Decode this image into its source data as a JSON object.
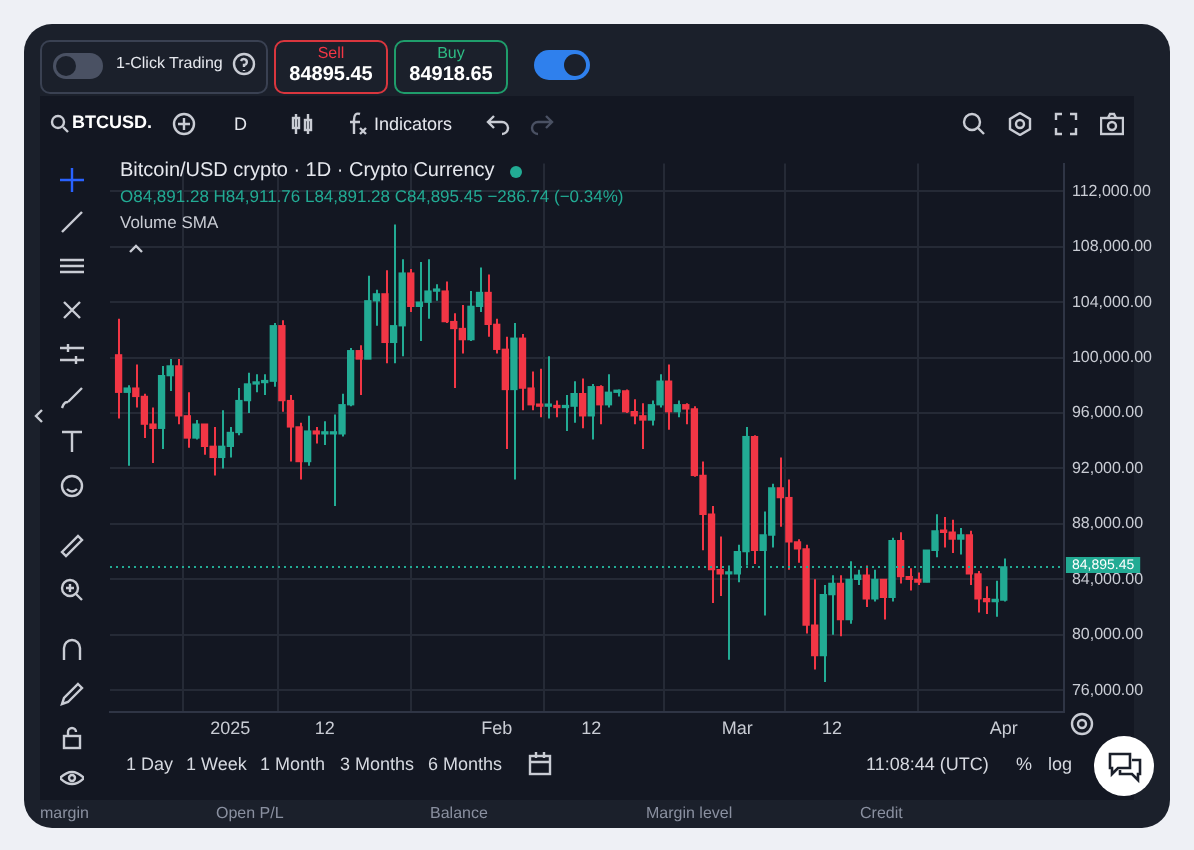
{
  "chart_data": {
    "type": "candlestick",
    "title": "Bitcoin/USD crypto · 1D · Crypto Currency",
    "annotations": [
      "1-Click Trading",
      "Sell",
      "84895.45",
      "Buy",
      "84918.65",
      "BTCUSD.",
      "D",
      "Indicators",
      "O84,891.28 H84,911.76 L84,891.28 C84,895.45 −286.74 (−0.34%)",
      "Volume SMA",
      "1 Day",
      "1 Week",
      "1 Month",
      "3 Months",
      "6 Months",
      "11:08:44 (UTC)",
      "%",
      "log",
      "margin",
      "Open P/L",
      "Balance",
      "Margin level",
      "Credit"
    ],
    "x": [
      "2024-12-19",
      "2024-12-20",
      "2024-12-21",
      "2024-12-22",
      "2024-12-23",
      "2024-12-24",
      "2024-12-25",
      "2024-12-26",
      "2024-12-27",
      "2024-12-28",
      "2024-12-29",
      "2024-12-30",
      "2024-12-31",
      "2025-01-01",
      "2025-01-02",
      "2025-01-03",
      "2025-01-04",
      "2025-01-05",
      "2025-01-06",
      "2025-01-07",
      "2025-01-08",
      "2025-01-09",
      "2025-01-10",
      "2025-01-11",
      "2025-01-12",
      "2025-01-13",
      "2025-01-14",
      "2025-01-15",
      "2025-01-16",
      "2025-01-17",
      "2025-01-18",
      "2025-01-19",
      "2025-01-20",
      "2025-01-21",
      "2025-01-22",
      "2025-01-23",
      "2025-01-24",
      "2025-01-25",
      "2025-01-26",
      "2025-01-27",
      "2025-01-28",
      "2025-01-29",
      "2025-01-30",
      "2025-01-31",
      "2025-02-01",
      "2025-02-02",
      "2025-02-03",
      "2025-02-04",
      "2025-02-05",
      "2025-02-06",
      "2025-02-07",
      "2025-02-08",
      "2025-02-09",
      "2025-02-10",
      "2025-02-11",
      "2025-02-12",
      "2025-02-13",
      "2025-02-14",
      "2025-02-15",
      "2025-02-16",
      "2025-02-17",
      "2025-02-18",
      "2025-02-19",
      "2025-02-20",
      "2025-02-21",
      "2025-02-22",
      "2025-02-23",
      "2025-02-24",
      "2025-02-25",
      "2025-02-26",
      "2025-02-27",
      "2025-02-28",
      "2025-03-01",
      "2025-03-02",
      "2025-03-03",
      "2025-03-04",
      "2025-03-05",
      "2025-03-06",
      "2025-03-07",
      "2025-03-08",
      "2025-03-09",
      "2025-03-10",
      "2025-03-11",
      "2025-03-12",
      "2025-03-13",
      "2025-03-14",
      "2025-03-15",
      "2025-03-16",
      "2025-03-17",
      "2025-03-18",
      "2025-03-19",
      "2025-03-20",
      "2025-03-21",
      "2025-03-22",
      "2025-03-23",
      "2025-03-24",
      "2025-03-25",
      "2025-03-26",
      "2025-03-27",
      "2025-03-28",
      "2025-03-29",
      "2025-03-30",
      "2025-03-31",
      "2025-04-01"
    ],
    "ohlc": [
      [
        100200,
        102800,
        95600,
        97500
      ],
      [
        97500,
        98000,
        92200,
        97800
      ],
      [
        97800,
        99500,
        96400,
        97200
      ],
      [
        97200,
        97400,
        94200,
        95200
      ],
      [
        95200,
        96400,
        92400,
        94900
      ],
      [
        94900,
        99400,
        93400,
        98700
      ],
      [
        98700,
        99900,
        97600,
        99400
      ],
      [
        99400,
        99900,
        95200,
        95800
      ],
      [
        95800,
        97500,
        93500,
        94200
      ],
      [
        94200,
        95500,
        94100,
        95200
      ],
      [
        95200,
        95200,
        93000,
        93600
      ],
      [
        93600,
        95000,
        91500,
        92800
      ],
      [
        92800,
        96200,
        92000,
        93600
      ],
      [
        93600,
        95000,
        92800,
        94600
      ],
      [
        94600,
        97800,
        94400,
        96900
      ],
      [
        96900,
        98900,
        96000,
        98100
      ],
      [
        98100,
        98800,
        97500,
        98200
      ],
      [
        98200,
        98800,
        97300,
        98300
      ],
      [
        98300,
        102500,
        97900,
        102300
      ],
      [
        102300,
        102700,
        96100,
        96900
      ],
      [
        96900,
        97300,
        92500,
        95000
      ],
      [
        95000,
        95300,
        91200,
        92500
      ],
      [
        92500,
        95800,
        92200,
        94700
      ],
      [
        94700,
        95000,
        93800,
        94500
      ],
      [
        94500,
        95400,
        93700,
        94500
      ],
      [
        94500,
        95900,
        89300,
        94500
      ],
      [
        94500,
        97400,
        94300,
        96600
      ],
      [
        96600,
        100700,
        96500,
        100500
      ],
      [
        100500,
        100900,
        97300,
        99900
      ],
      [
        99900,
        105900,
        99900,
        104100
      ],
      [
        104100,
        104900,
        102300,
        104600
      ],
      [
        104600,
        106300,
        99600,
        101100
      ],
      [
        101100,
        109600,
        99600,
        102300
      ],
      [
        102300,
        107100,
        100100,
        106100
      ],
      [
        106100,
        106400,
        103300,
        103700
      ],
      [
        103700,
        106900,
        101200,
        104000
      ],
      [
        104000,
        107100,
        102800,
        104800
      ],
      [
        104800,
        105300,
        104100,
        104800
      ],
      [
        104800,
        105500,
        102500,
        102600
      ],
      [
        102600,
        103200,
        97800,
        102100
      ],
      [
        102100,
        103800,
        100300,
        101300
      ],
      [
        101300,
        104800,
        101200,
        103700
      ],
      [
        103700,
        106500,
        103300,
        104700
      ],
      [
        104700,
        106000,
        101500,
        102400
      ],
      [
        102400,
        102800,
        100300,
        100600
      ],
      [
        100600,
        101500,
        93400,
        97700
      ],
      [
        97700,
        102500,
        91200,
        101400
      ],
      [
        101400,
        101700,
        96200,
        97800
      ],
      [
        97800,
        99000,
        96200,
        96600
      ],
      [
        96600,
        99200,
        95700,
        96500
      ],
      [
        96500,
        100100,
        95600,
        96500
      ],
      [
        96500,
        96900,
        95700,
        96400
      ],
      [
        96400,
        97300,
        94700,
        96500
      ],
      [
        96500,
        98300,
        95300,
        97400
      ],
      [
        97400,
        98500,
        94900,
        95800
      ],
      [
        95800,
        98100,
        94100,
        97900
      ],
      [
        97900,
        98000,
        95200,
        96600
      ],
      [
        96600,
        98800,
        96400,
        97500
      ],
      [
        97500,
        97700,
        97200,
        97600
      ],
      [
        97600,
        97700,
        96000,
        96100
      ],
      [
        96100,
        97000,
        95200,
        95800
      ],
      [
        95800,
        96700,
        93400,
        95500
      ],
      [
        95500,
        96900,
        95100,
        96600
      ],
      [
        96600,
        98800,
        96400,
        98300
      ],
      [
        98300,
        99500,
        94800,
        96100
      ],
      [
        96100,
        96900,
        95700,
        96600
      ],
      [
        96600,
        96700,
        95200,
        96300
      ],
      [
        96300,
        96500,
        91400,
        91500
      ],
      [
        91500,
        92500,
        86100,
        88700
      ],
      [
        88700,
        89300,
        82300,
        84700
      ],
      [
        84700,
        87100,
        82800,
        84400
      ],
      [
        84400,
        85000,
        78200,
        84400
      ],
      [
        84400,
        86500,
        83800,
        86000
      ],
      [
        86000,
        95000,
        85000,
        94300
      ],
      [
        94300,
        94400,
        85100,
        86100
      ],
      [
        86100,
        88900,
        81400,
        87200
      ],
      [
        87200,
        90900,
        86300,
        90600
      ],
      [
        90600,
        92800,
        87800,
        89900
      ],
      [
        89900,
        91200,
        84700,
        86700
      ],
      [
        86700,
        86900,
        85200,
        86200
      ],
      [
        86200,
        86500,
        80100,
        80700
      ],
      [
        80700,
        84000,
        77500,
        78500
      ],
      [
        78500,
        83600,
        76600,
        82900
      ],
      [
        82900,
        84300,
        80000,
        83700
      ],
      [
        83700,
        84300,
        79900,
        81100
      ],
      [
        81100,
        85300,
        80800,
        84000
      ],
      [
        84000,
        84700,
        83600,
        84300
      ],
      [
        84300,
        85000,
        82000,
        82600
      ],
      [
        82600,
        84700,
        82400,
        84000
      ],
      [
        84000,
        84000,
        81100,
        82700
      ],
      [
        82700,
        87000,
        82400,
        86800
      ],
      [
        86800,
        87400,
        83700,
        84200
      ],
      [
        84200,
        84800,
        83200,
        84000
      ],
      [
        84000,
        84500,
        83600,
        83800
      ],
      [
        83800,
        86100,
        83800,
        86100
      ],
      [
        86100,
        88700,
        85600,
        87500
      ],
      [
        87500,
        88500,
        86300,
        87400
      ],
      [
        87400,
        88300,
        85900,
        86900
      ],
      [
        86900,
        87700,
        85800,
        87200
      ],
      [
        87200,
        87500,
        83600,
        84400
      ],
      [
        84400,
        84600,
        81600,
        82600
      ],
      [
        82600,
        83500,
        81500,
        82400
      ],
      [
        82400,
        83900,
        81300,
        82500
      ],
      [
        82500,
        85500,
        82400,
        84895.45
      ]
    ],
    "xlim": [
      "2024-12-18",
      "2025-04-08"
    ],
    "xticks": [
      {
        "value": "2025-01-01",
        "label": "2025"
      },
      {
        "value": "2025-01-12",
        "label": "12"
      },
      {
        "value": "2025-02-01",
        "label": "Feb"
      },
      {
        "value": "2025-02-12",
        "label": "12"
      },
      {
        "value": "2025-03-01",
        "label": "Mar"
      },
      {
        "value": "2025-03-12",
        "label": "12"
      },
      {
        "value": "2025-04-01",
        "label": "Apr"
      }
    ],
    "ylim": [
      74400,
      114000
    ],
    "yticks": [
      {
        "value": 76000,
        "label": "76,000.00"
      },
      {
        "value": 80000,
        "label": "80,000.00"
      },
      {
        "value": 84000,
        "label": "84,000.00"
      },
      {
        "value": 88000,
        "label": "88,000.00"
      },
      {
        "value": 92000,
        "label": "92,000.00"
      },
      {
        "value": 96000,
        "label": "96,000.00"
      },
      {
        "value": 100000,
        "label": "100,000.00"
      },
      {
        "value": 104000,
        "label": "104,000.00"
      },
      {
        "value": 108000,
        "label": "108,000.00"
      },
      {
        "value": 112000,
        "label": "112,000.00"
      }
    ],
    "ref_lines": [
      {
        "axis": "y",
        "value": 84895.45,
        "label": "84,895.45",
        "color": "#22ab94",
        "line_style": "dotted"
      }
    ],
    "grid": true
  }
}
